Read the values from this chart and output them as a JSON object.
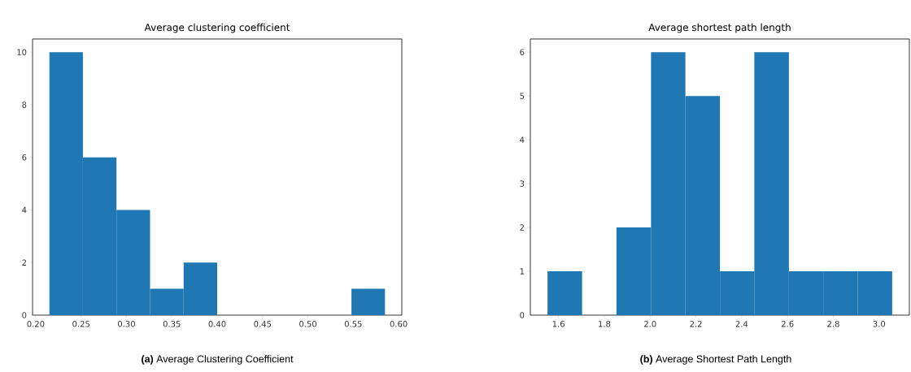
{
  "chart_data": [
    {
      "type": "histogram",
      "title": "Average clustering coefficient",
      "bins": [
        0.215,
        0.252,
        0.289,
        0.326,
        0.363,
        0.4,
        0.437,
        0.474,
        0.511,
        0.548,
        0.585
      ],
      "values": [
        10,
        6,
        4,
        1,
        2,
        0,
        0,
        0,
        0,
        1
      ],
      "color": "#1f77b4",
      "xlim": [
        0.1965,
        0.6035
      ],
      "ylim": [
        0,
        10.5
      ],
      "xticks": [
        {
          "value": 0.2,
          "label": "0.20"
        },
        0.25,
        {
          "value": 0.3,
          "label": "0.30"
        },
        0.35,
        {
          "value": 0.4,
          "label": "0.40"
        },
        0.45,
        {
          "value": 0.5,
          "label": "0.50"
        },
        0.55,
        {
          "value": 0.6,
          "label": "0.60"
        }
      ],
      "yticks": [
        0,
        2,
        4,
        6,
        8,
        10
      ],
      "annotations": [
        "**(a)** Average Clustering Coefficient"
      ]
    },
    {
      "type": "histogram",
      "title": "Average shortest path length",
      "bins": [
        1.552,
        1.703,
        1.853,
        2.004,
        2.154,
        2.305,
        2.455,
        2.606,
        2.756,
        2.907,
        3.057
      ],
      "values": [
        1,
        0,
        2,
        6,
        5,
        1,
        6,
        1,
        1,
        1
      ],
      "color": "#1f77b4",
      "xlim": [
        1.477,
        3.132
      ],
      "ylim": [
        0,
        6.3
      ],
      "xticks": [
        1.6,
        1.8,
        {
          "value": 2.0,
          "label": "2.0"
        },
        2.2,
        2.4,
        2.6,
        2.8,
        {
          "value": 3.0,
          "label": "3.0"
        }
      ],
      "yticks": [
        0,
        1,
        2,
        3,
        4,
        5,
        6
      ],
      "annotations": [
        "**(b)** Average Shortest Path Length"
      ]
    }
  ]
}
